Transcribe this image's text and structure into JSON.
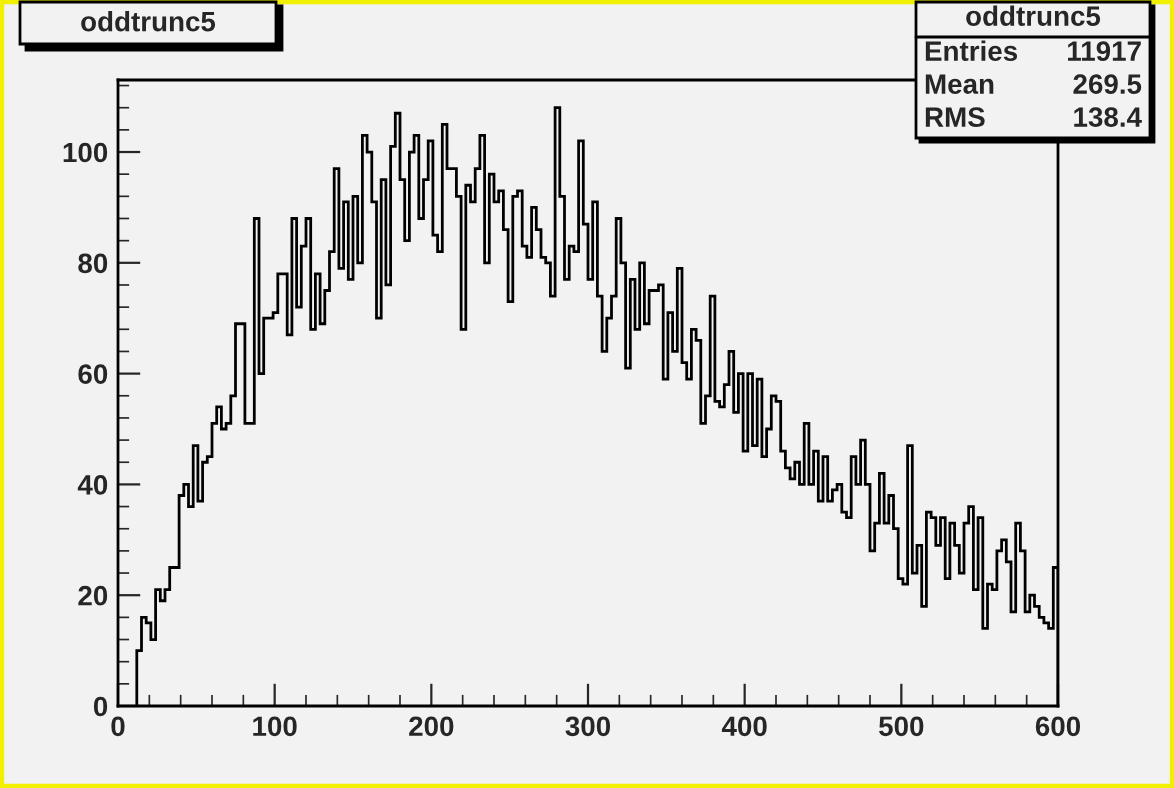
{
  "chart_data": {
    "type": "histogram",
    "title": "oddtrunc5",
    "annotations": [
      "oddtrunc5",
      "Entries 11917",
      "Mean 269.5",
      "RMS 138.4"
    ],
    "bins": [
      12,
      15,
      18,
      21,
      24,
      27,
      30,
      33,
      36,
      39,
      42,
      45,
      48,
      51,
      54,
      57,
      60,
      63,
      66,
      69,
      72,
      75,
      78,
      81,
      84,
      87,
      90,
      93,
      96,
      99,
      102,
      105,
      108,
      111,
      114,
      117,
      120,
      123,
      126,
      129,
      132,
      135,
      138,
      141,
      144,
      147,
      150,
      153,
      156,
      159,
      162,
      165,
      168,
      171,
      174,
      177,
      180,
      183,
      186,
      189,
      192,
      195,
      198,
      201,
      204,
      207,
      210,
      213,
      216,
      219,
      222,
      225,
      228,
      231,
      234,
      237,
      240,
      243,
      246,
      249,
      252,
      255,
      258,
      261,
      264,
      267,
      270,
      273,
      276,
      279,
      282,
      285,
      288,
      291,
      294,
      297,
      300,
      303,
      306,
      309,
      312,
      315,
      318,
      321,
      324,
      327,
      330,
      333,
      336,
      339,
      342,
      345,
      348,
      351,
      354,
      357,
      360,
      363,
      366,
      369,
      372,
      375,
      378,
      381,
      384,
      387,
      390,
      393,
      396,
      399,
      402,
      405,
      408,
      411,
      414,
      417,
      420,
      423,
      426,
      429,
      432,
      435,
      438,
      441,
      444,
      447,
      450,
      453,
      456,
      459,
      462,
      465,
      468,
      471,
      474,
      477,
      480,
      483,
      486,
      489,
      492,
      495,
      498,
      501,
      504,
      507,
      510,
      513,
      516,
      519,
      522,
      525,
      528,
      531,
      534,
      537,
      540,
      543,
      546,
      549,
      552,
      555,
      558,
      561,
      564,
      567,
      570,
      573,
      576,
      579,
      582,
      585,
      588,
      591,
      594,
      597,
      600
    ],
    "values": [
      10,
      16,
      15,
      12,
      21,
      19,
      21,
      25,
      25,
      38,
      40,
      36,
      47,
      37,
      44,
      45,
      51,
      54,
      50,
      51,
      56,
      69,
      69,
      51,
      51,
      88,
      60,
      70,
      70,
      71,
      78,
      78,
      67,
      88,
      72,
      83,
      88,
      68,
      78,
      69,
      75,
      82,
      97,
      79,
      91,
      77,
      92,
      80,
      103,
      100,
      91,
      70,
      95,
      76,
      101,
      107,
      95,
      84,
      100,
      103,
      88,
      95,
      102,
      85,
      82,
      105,
      97,
      97,
      92,
      68,
      94,
      91,
      97,
      103,
      80,
      96,
      91,
      93,
      86,
      73,
      92,
      93,
      83,
      81,
      90,
      86,
      81,
      80,
      74,
      108,
      92,
      77,
      83,
      82,
      102,
      87,
      77,
      91,
      74,
      64,
      70,
      74,
      88,
      80,
      61,
      77,
      68,
      80,
      69,
      75,
      75,
      76,
      59,
      71,
      64,
      79,
      62,
      59,
      68,
      66,
      51,
      56,
      74,
      55,
      54,
      58,
      64,
      53,
      60,
      46,
      60,
      47,
      59,
      45,
      50,
      56,
      55,
      46,
      43,
      41,
      44,
      40,
      51,
      40,
      46,
      37,
      45,
      37,
      39,
      40,
      35,
      34,
      45,
      40,
      48,
      40,
      28,
      33,
      42,
      33,
      38,
      32,
      23,
      22,
      47,
      24,
      29,
      18,
      35,
      34,
      29,
      34,
      23,
      33,
      29,
      24,
      33,
      36,
      21,
      34,
      14,
      22,
      21,
      28,
      30,
      26,
      17,
      33,
      28,
      17,
      20,
      18,
      16,
      15,
      14,
      25
    ],
    "color": "#000000",
    "xlim": [
      0,
      600
    ],
    "xticks": [
      0,
      100,
      200,
      300,
      400,
      500,
      600
    ],
    "ylim": [
      0,
      113
    ],
    "yticks": [
      0,
      20,
      40,
      60,
      80,
      100
    ]
  }
}
